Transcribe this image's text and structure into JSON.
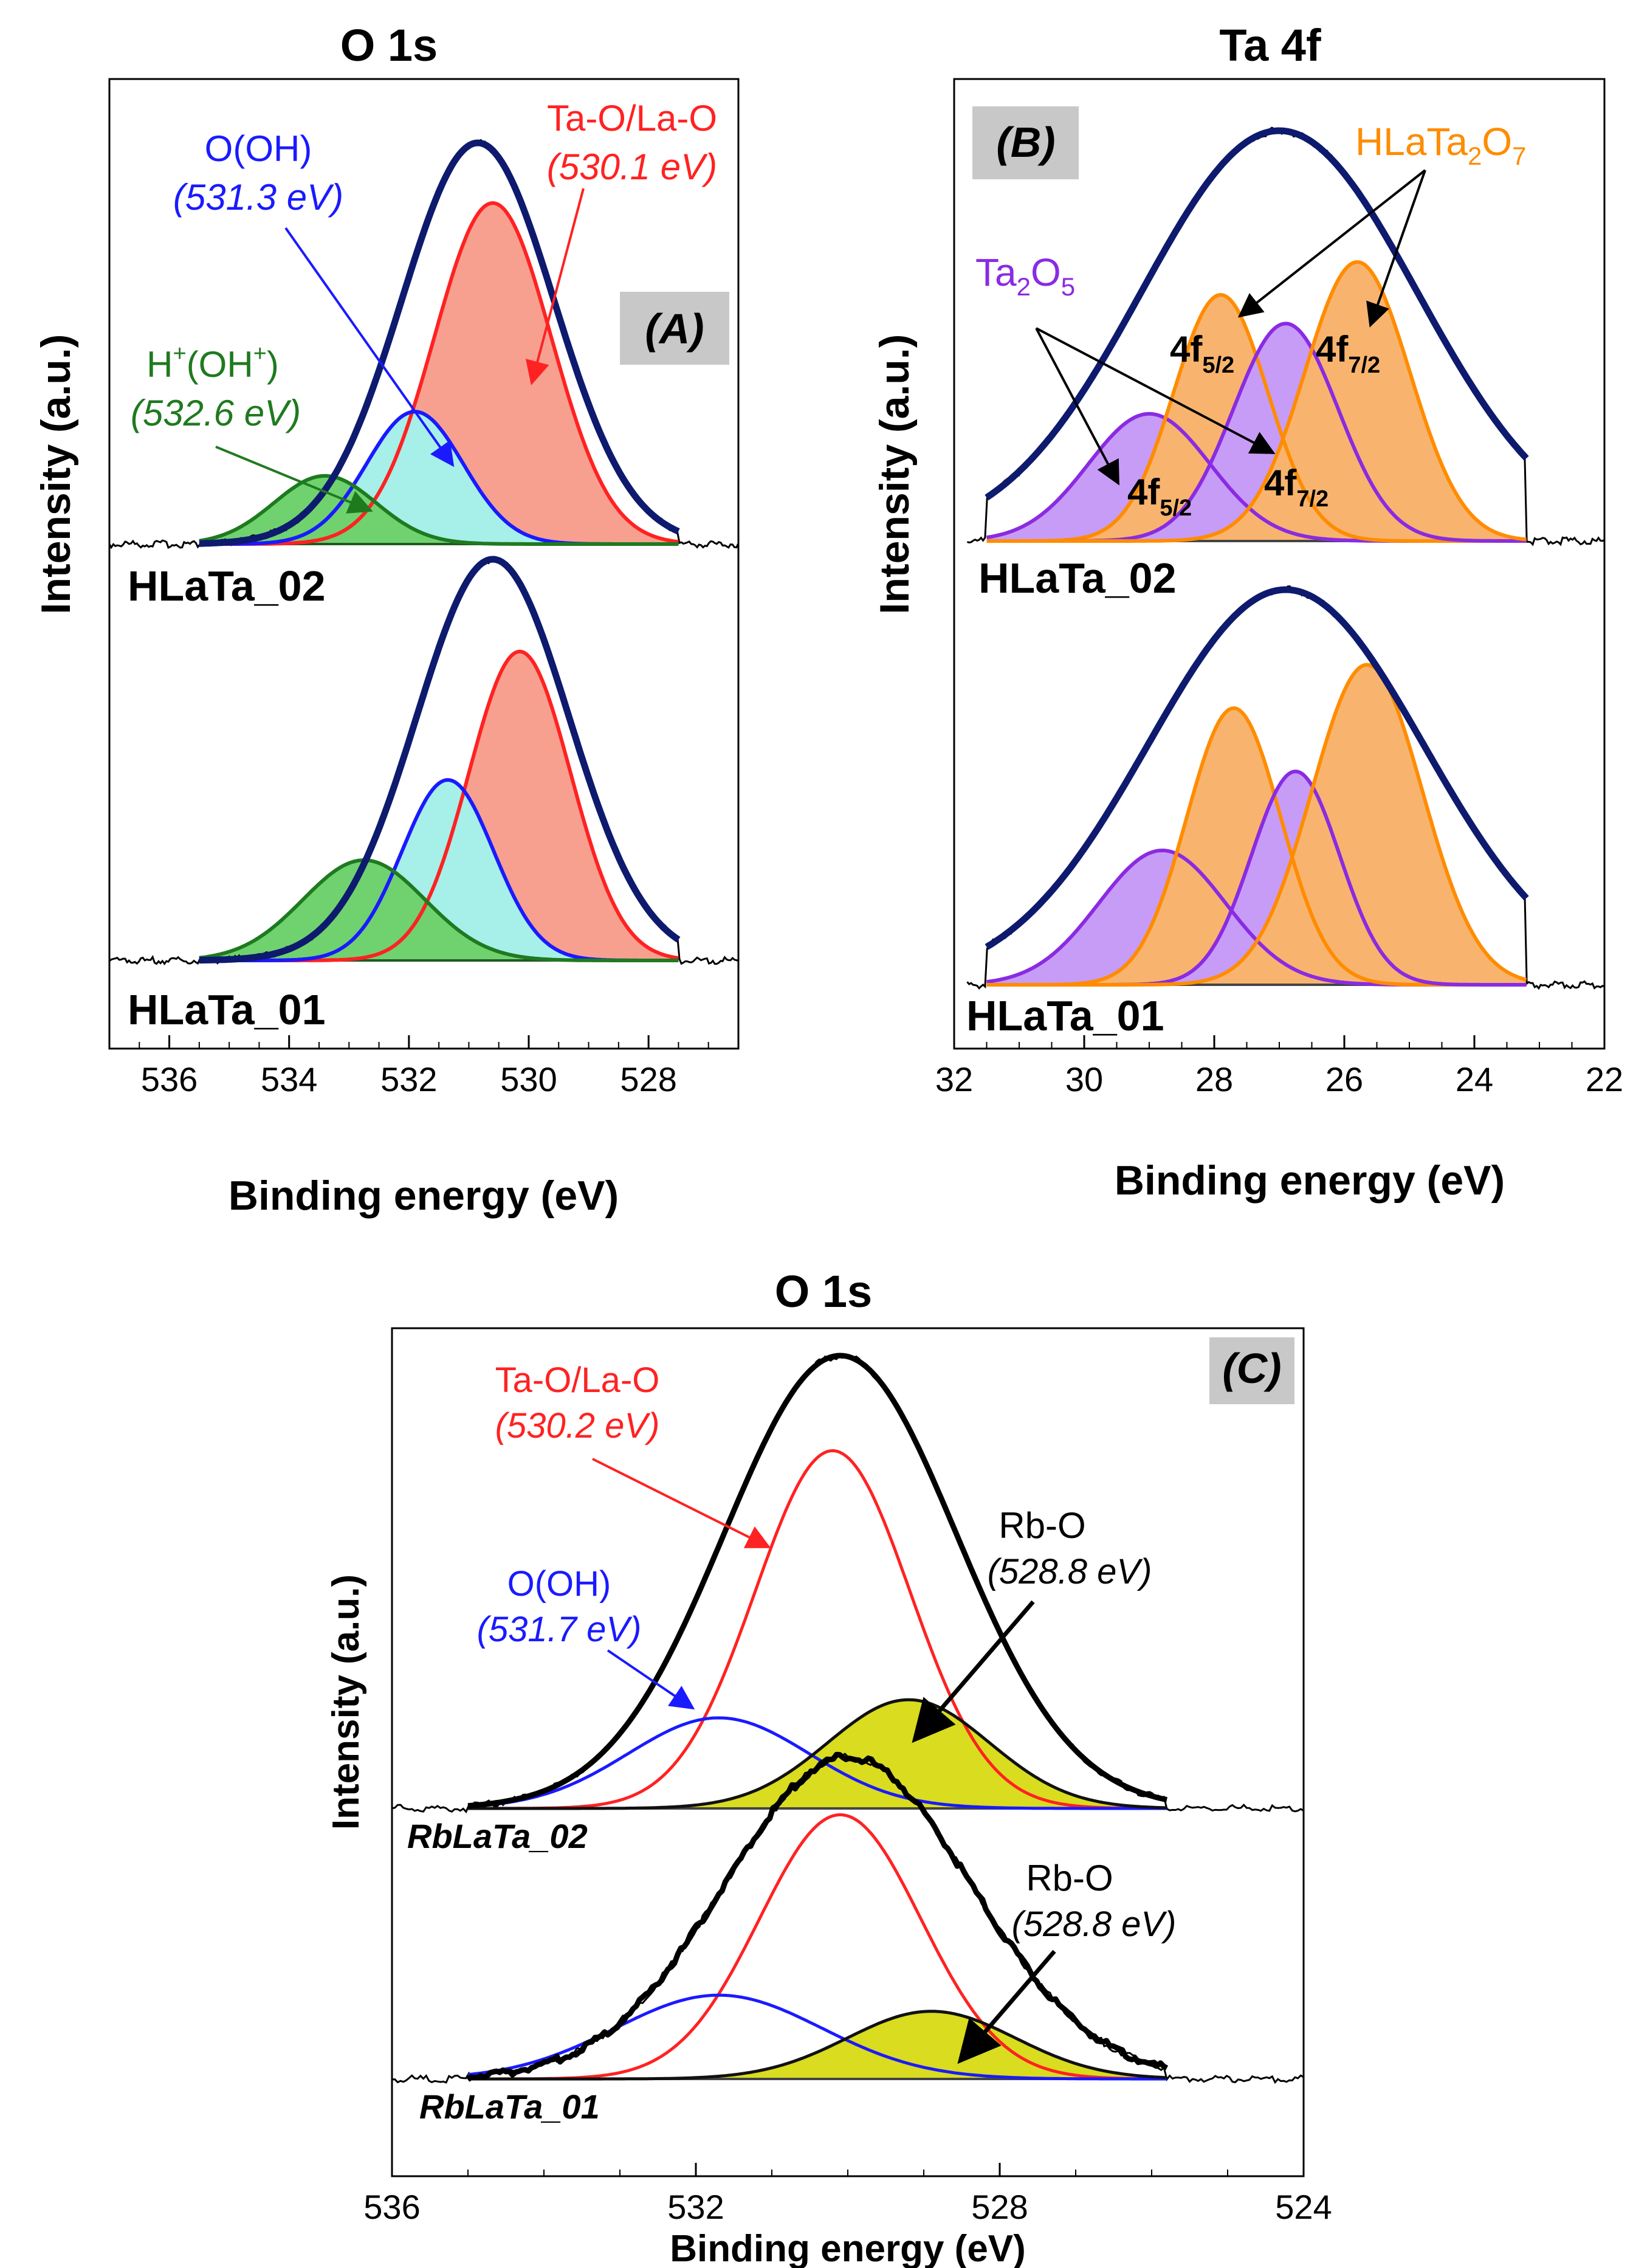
{
  "chart_data": [
    {
      "panel": "A",
      "type": "line",
      "title": "O 1s",
      "panel_label": "(A)",
      "xlabel": "Binding energy (eV)",
      "ylabel": "Intensity (a.u.)",
      "xlim": [
        537,
        526.5
      ],
      "x_ticks": [
        "536",
        "534",
        "532",
        "530",
        "528"
      ],
      "spectra": [
        {
          "sample": "HLaTa_02",
          "envelope": {
            "center": 530.85,
            "fwhm": 3.0,
            "height": 1.0
          },
          "components": [
            {
              "name": "Ta-O/La-O",
              "binding_energy_eV": 530.6,
              "fwhm": 2.3,
              "height": 0.85,
              "color": "#ff2222",
              "fill": "#f7a090"
            },
            {
              "name": "O(OH)",
              "binding_energy_eV": 531.9,
              "fwhm": 1.9,
              "height": 0.33,
              "color": "#1a1aff",
              "fill": "#a7efe9"
            },
            {
              "name": "H+(OH+)",
              "binding_energy_eV": 533.4,
              "fwhm": 2.0,
              "height": 0.17,
              "color": "#1f7a1f",
              "fill": "#6fd26f"
            }
          ]
        },
        {
          "sample": "HLaTa_01",
          "envelope": {
            "center": 530.6,
            "fwhm": 3.0,
            "height": 1.0
          },
          "components": [
            {
              "name": "Ta-O/La-O",
              "binding_energy_eV": 530.15,
              "fwhm": 2.0,
              "height": 0.77,
              "color": "#ff2222",
              "fill": "#f7a090"
            },
            {
              "name": "O(OH)",
              "binding_energy_eV": 531.35,
              "fwhm": 1.8,
              "height": 0.45,
              "color": "#1a1aff",
              "fill": "#a7efe9"
            },
            {
              "name": "H+(OH+)",
              "binding_energy_eV": 532.75,
              "fwhm": 2.4,
              "height": 0.25,
              "color": "#1f7a1f",
              "fill": "#6fd26f"
            }
          ]
        }
      ],
      "annotations": [
        {
          "text": "Ta-O/La-O",
          "energy": "(530.1 eV)",
          "color": "#ff2222"
        },
        {
          "text": "O(OH)",
          "energy": "(531.3 eV)",
          "color": "#1a1aff"
        },
        {
          "text": "H",
          "sup1": "+",
          "mid": "(OH",
          "sup2": "+",
          "end": ")",
          "energy": "(532.6 eV)",
          "color": "#1f7a1f"
        }
      ]
    },
    {
      "panel": "B",
      "type": "line",
      "title": "Ta 4f",
      "panel_label": "(B)",
      "xlabel": "Binding energy (eV)",
      "ylabel": "Intensity (a.u.)",
      "xlim": [
        32,
        22
      ],
      "x_ticks": [
        "32",
        "30",
        "28",
        "26",
        "24",
        "22"
      ],
      "spectra": [
        {
          "sample": "HLaTa_02",
          "envelope": {
            "center": 27.0,
            "fwhm": 5.0,
            "height": 1.0
          },
          "components": [
            {
              "name": "Ta2O5 4f5/2",
              "binding_energy_eV": 29.0,
              "fwhm": 2.2,
              "height": 0.31,
              "color": "#8a2be2",
              "fill": "#c79cf7"
            },
            {
              "name": "HLaTa2O7 4f5/2",
              "binding_energy_eV": 27.9,
              "fwhm": 1.7,
              "height": 0.6,
              "color": "#ff8c00",
              "fill": "#f8b46e"
            },
            {
              "name": "Ta2O5 4f7/2",
              "binding_energy_eV": 26.9,
              "fwhm": 1.9,
              "height": 0.53,
              "color": "#8a2be2",
              "fill": "#c79cf7"
            },
            {
              "name": "HLaTa2O7 4f7/2",
              "binding_energy_eV": 25.8,
              "fwhm": 1.9,
              "height": 0.68,
              "color": "#ff8c00",
              "fill": "#f8b46e"
            }
          ]
        },
        {
          "sample": "HLaTa_01",
          "envelope": {
            "center": 26.9,
            "fwhm": 5.0,
            "height": 1.0
          },
          "components": [
            {
              "name": "Ta2O5 4f5/2",
              "binding_energy_eV": 28.8,
              "fwhm": 2.3,
              "height": 0.34,
              "color": "#8a2be2",
              "fill": "#c79cf7"
            },
            {
              "name": "HLaTa2O7 4f5/2",
              "binding_energy_eV": 27.7,
              "fwhm": 1.7,
              "height": 0.7,
              "color": "#ff8c00",
              "fill": "#f8b46e"
            },
            {
              "name": "Ta2O5 4f7/2",
              "binding_energy_eV": 26.75,
              "fwhm": 1.6,
              "height": 0.54,
              "color": "#8a2be2",
              "fill": "#c79cf7"
            },
            {
              "name": "HLaTa2O7 4f7/2",
              "binding_energy_eV": 25.65,
              "fwhm": 2.0,
              "height": 0.81,
              "color": "#ff8c00",
              "fill": "#f8b46e"
            }
          ]
        }
      ],
      "annotations": [
        {
          "text": "HLaTa",
          "sub1": "2",
          "mid": "O",
          "sub2": "7",
          "color": "#ff8c00"
        },
        {
          "text": "Ta",
          "sub1": "2",
          "mid": "O",
          "sub2": "5",
          "color": "#8a2be2"
        },
        {
          "text": "4f",
          "sub": "5/2"
        },
        {
          "text": "4f",
          "sub": "7/2"
        }
      ]
    },
    {
      "panel": "C",
      "type": "line",
      "title": "O 1s",
      "panel_label": "(C)",
      "xlabel": "Binding energy (eV)",
      "ylabel": "Intensity (a.u.)",
      "xlim": [
        536,
        524
      ],
      "x_ticks": [
        "536",
        "532",
        "528",
        "524"
      ],
      "spectra": [
        {
          "sample": "RbLaTa_02",
          "envelope": {
            "center": 530.1,
            "fwhm": 3.6,
            "height": 1.0
          },
          "components": [
            {
              "name": "Ta-O/La-O",
              "binding_energy_eV": 530.2,
              "fwhm": 2.4,
              "height": 0.79,
              "color": "#ff2222",
              "fill": "none"
            },
            {
              "name": "O(OH)",
              "binding_energy_eV": 531.7,
              "fwhm": 2.8,
              "height": 0.2,
              "color": "#1a1aff",
              "fill": "none"
            },
            {
              "name": "Rb-O",
              "binding_energy_eV": 529.2,
              "fwhm": 2.5,
              "height": 0.24,
              "color": "#111111",
              "fill": "#d9dc1f"
            }
          ]
        },
        {
          "sample": "RbLaTa_01",
          "envelope": {
            "center": 530.0,
            "fwhm": 3.8,
            "height": 1.0
          },
          "components": [
            {
              "name": "Ta-O/La-O",
              "binding_energy_eV": 530.1,
              "fwhm": 2.5,
              "height": 0.82,
              "color": "#ff2222",
              "fill": "none"
            },
            {
              "name": "O(OH)",
              "binding_energy_eV": 531.7,
              "fwhm": 3.2,
              "height": 0.26,
              "color": "#1a1aff",
              "fill": "none"
            },
            {
              "name": "Rb-O",
              "binding_energy_eV": 528.9,
              "fwhm": 2.6,
              "height": 0.21,
              "color": "#111111",
              "fill": "#d9dc1f"
            }
          ]
        }
      ],
      "annotations": [
        {
          "text": "Ta-O/La-O",
          "energy": "(530.2 eV)",
          "color": "#ff2222"
        },
        {
          "text": "O(OH)",
          "energy": "(531.7 eV)",
          "color": "#1a1aff"
        },
        {
          "text": "Rb-O",
          "energy": "(528.8 eV)",
          "color": "#000000"
        },
        {
          "text": "Rb-O",
          "energy": "(528.8 eV)",
          "color": "#000000"
        }
      ]
    }
  ],
  "colors": {
    "envelope_ab": "#0d1a6e",
    "envelope_c": "#000000",
    "panel_label_bg": "#c8c8c8"
  }
}
